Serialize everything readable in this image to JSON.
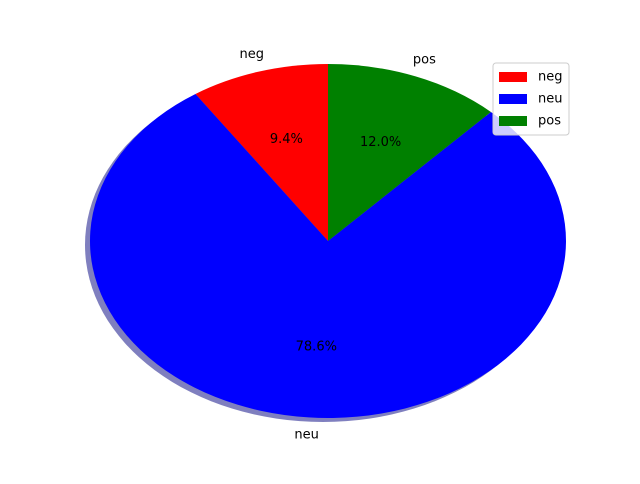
{
  "chart_data": {
    "type": "pie",
    "categories": [
      "neg",
      "neu",
      "pos"
    ],
    "values": [
      9.4,
      78.6,
      12.0
    ],
    "percent_labels": [
      "9.4%",
      "78.6%",
      "12.0%"
    ],
    "colors": [
      "#ff0000",
      "#0000ff",
      "#008000"
    ],
    "shadow": true,
    "start_angle_deg": 90,
    "direction": "counterclockwise",
    "legend": {
      "placement": "top-right",
      "entries": [
        "neg",
        "neu",
        "pos"
      ]
    }
  }
}
